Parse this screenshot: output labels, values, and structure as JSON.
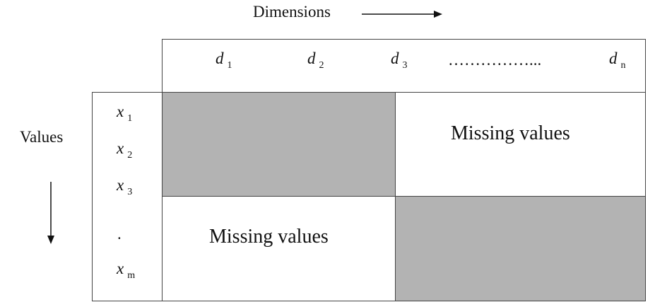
{
  "top_label": "Dimensions",
  "side_label": "Values",
  "dimensions": [
    {
      "sym": "d",
      "sub": "1"
    },
    {
      "sym": "d",
      "sub": "2"
    },
    {
      "sym": "d",
      "sub": "3"
    },
    {
      "sym": "d",
      "sub": "n"
    }
  ],
  "dim_ellipsis": "……………...",
  "values": [
    {
      "sym": "x",
      "sub": "1"
    },
    {
      "sym": "x",
      "sub": "2"
    },
    {
      "sym": "x",
      "sub": "3"
    },
    {
      "sym": "x",
      "sub": "m"
    }
  ],
  "value_dot": ".",
  "missing_top_right": "Missing values",
  "missing_bottom_left": "Missing values",
  "colors": {
    "filled": "#b3b3b3",
    "border": "#444444"
  }
}
